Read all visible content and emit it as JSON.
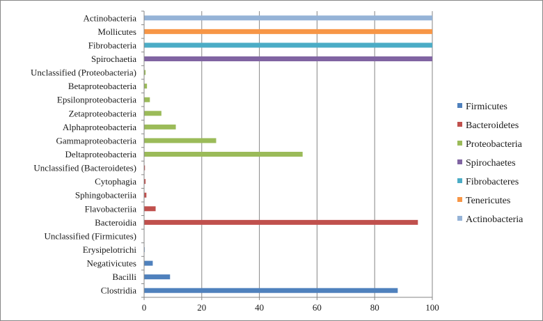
{
  "chart_data": {
    "type": "bar",
    "orientation": "horizontal",
    "categories": [
      "Clostridia",
      "Bacilli",
      "Negativicutes",
      "Erysipelotrichi",
      "Unclassified (Firmicutes)",
      "Bacteroidia",
      "Flavobacteriia",
      "Sphingobacteriia",
      "Cytophagia",
      "Unclassified (Bacteroidetes)",
      "Deltaproteobacteria",
      "Gammaproteobacteria",
      "Alphaproteobacteria",
      "Zetaproteobacteria",
      "Epsilonproteobacteria",
      "Betaproteobacteria",
      "Unclassified (Proteobacteria)",
      "Spirochaetia",
      "Fibrobacteria",
      "Mollicutes",
      "Actinobacteria"
    ],
    "series": [
      {
        "name": "Firmicutes",
        "color": "#4F81BD",
        "values": [
          88,
          9,
          3,
          0.2,
          0.1,
          null,
          null,
          null,
          null,
          null,
          null,
          null,
          null,
          null,
          null,
          null,
          null,
          null,
          null,
          null,
          null
        ]
      },
      {
        "name": "Bacteroidetes",
        "color": "#C0504D",
        "values": [
          null,
          null,
          null,
          null,
          null,
          95,
          4,
          0.8,
          0.5,
          0.3,
          null,
          null,
          null,
          null,
          null,
          null,
          null,
          null,
          null,
          null,
          null
        ]
      },
      {
        "name": "Proteobacteria",
        "color": "#9BBB59",
        "values": [
          null,
          null,
          null,
          null,
          null,
          null,
          null,
          null,
          null,
          null,
          55,
          25,
          11,
          6,
          2,
          1,
          0.5,
          null,
          null,
          null,
          null
        ]
      },
      {
        "name": "Spirochaetes",
        "color": "#8064A2",
        "values": [
          null,
          null,
          null,
          null,
          null,
          null,
          null,
          null,
          null,
          null,
          null,
          null,
          null,
          null,
          null,
          null,
          null,
          100,
          null,
          null,
          null
        ]
      },
      {
        "name": "Fibrobacteres",
        "color": "#4BACC6",
        "values": [
          null,
          null,
          null,
          null,
          null,
          null,
          null,
          null,
          null,
          null,
          null,
          null,
          null,
          null,
          null,
          null,
          null,
          null,
          100,
          null,
          null
        ]
      },
      {
        "name": "Tenericutes",
        "color": "#F79646",
        "values": [
          null,
          null,
          null,
          null,
          null,
          null,
          null,
          null,
          null,
          null,
          null,
          null,
          null,
          null,
          null,
          null,
          null,
          null,
          null,
          100,
          null
        ]
      },
      {
        "name": "Actinobacteria",
        "color": "#95B3D7",
        "values": [
          null,
          null,
          null,
          null,
          null,
          null,
          null,
          null,
          null,
          null,
          null,
          null,
          null,
          null,
          null,
          null,
          null,
          null,
          null,
          null,
          100
        ]
      }
    ],
    "xlim": [
      0,
      100
    ],
    "xticks": [
      "0",
      "20",
      "40",
      "60",
      "80",
      "100"
    ],
    "grid": "vertical major gridlines",
    "legend_position": "right"
  }
}
